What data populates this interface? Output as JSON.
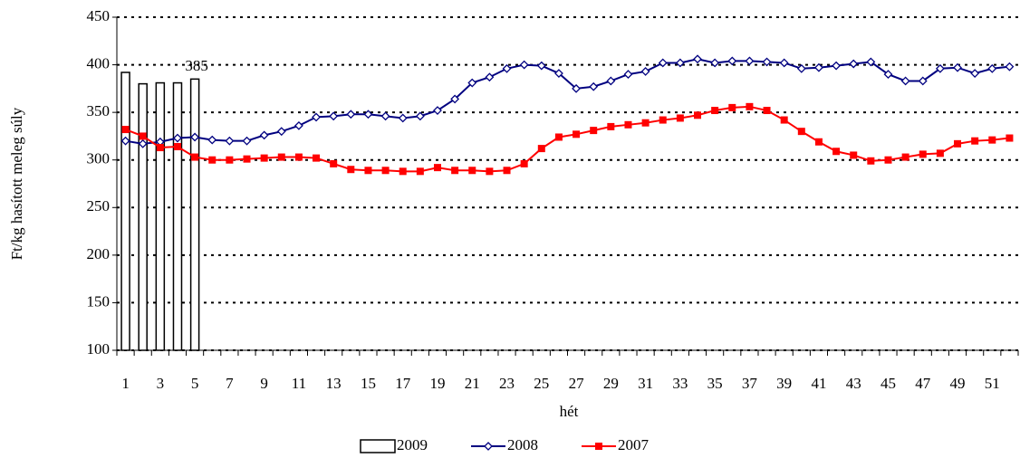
{
  "chart_data": {
    "type": "combo",
    "y_label": "Ft/kg hasított meleg súly",
    "x_label": "hét",
    "categories": [
      1,
      null,
      3,
      null,
      5,
      null,
      7,
      null,
      9,
      null,
      11,
      null,
      13,
      null,
      15,
      null,
      17,
      null,
      19,
      null,
      21,
      null,
      23,
      null,
      25,
      null,
      27,
      null,
      29,
      null,
      31,
      null,
      33,
      null,
      35,
      null,
      37,
      null,
      39,
      null,
      41,
      null,
      43,
      null,
      45,
      null,
      47,
      null,
      49,
      null,
      51,
      null
    ],
    "ylim": [
      100,
      450
    ],
    "yticks": [
      100,
      150,
      200,
      250,
      300,
      350,
      400,
      450
    ],
    "grid": true,
    "series": [
      {
        "name": "2009",
        "type": "bar",
        "color": "#ffffff",
        "data_labels": [
          false,
          false,
          false,
          false,
          true
        ],
        "values": [
          392,
          380,
          381,
          381,
          385,
          null,
          null,
          null,
          null,
          null,
          null,
          null,
          null,
          null,
          null,
          null,
          null,
          null,
          null,
          null,
          null,
          null,
          null,
          null,
          null,
          null,
          null,
          null,
          null,
          null,
          null,
          null,
          null,
          null,
          null,
          null,
          null,
          null,
          null,
          null,
          null,
          null,
          null,
          null,
          null,
          null,
          null,
          null,
          null,
          null,
          null,
          null
        ]
      },
      {
        "name": "2008",
        "type": "line",
        "marker": "diamond",
        "color": "#000080",
        "values": [
          320,
          317,
          319,
          323,
          324,
          321,
          320,
          320,
          326,
          330,
          336,
          345,
          346,
          348,
          348,
          346,
          344,
          346,
          352,
          364,
          381,
          387,
          396,
          400,
          399,
          391,
          375,
          377,
          383,
          390,
          393,
          402,
          402,
          406,
          402,
          404,
          404,
          403,
          402,
          396,
          397,
          399,
          401,
          403,
          390,
          383,
          383,
          396,
          397,
          391,
          396,
          398
        ]
      },
      {
        "name": "2007",
        "type": "line",
        "marker": "square",
        "color": "#ff0000",
        "values": [
          332,
          325,
          313,
          314,
          303,
          300,
          300,
          301,
          302,
          303,
          303,
          302,
          296,
          290,
          289,
          289,
          288,
          288,
          292,
          289,
          289,
          288,
          289,
          296,
          312,
          324,
          327,
          331,
          335,
          337,
          339,
          342,
          344,
          347,
          352,
          355,
          356,
          352,
          342,
          330,
          319,
          309,
          305,
          299,
          300,
          303,
          306,
          307,
          317,
          320,
          321,
          323
        ]
      }
    ]
  }
}
